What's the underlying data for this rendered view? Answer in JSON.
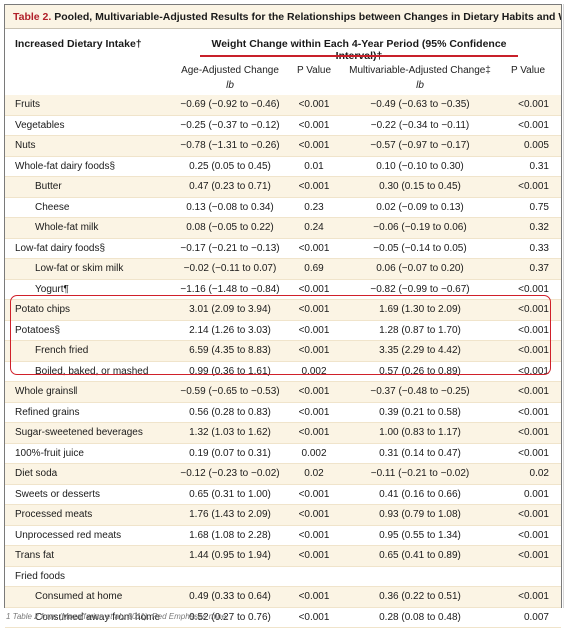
{
  "title": {
    "label": "Table 2.",
    "text": " Pooled, Multivariable-Adjusted Results for the Relationships between Changes in Dietary Habits and Weight Change.*"
  },
  "header": {
    "left": "Increased Dietary Intake†",
    "span": "Weight Change within Each 4-Year Period (95% Confidence Interval)†",
    "col1": "Age-Adjusted Change",
    "col1_unit": "lb",
    "col2": "P Value",
    "col3": "Multivariable-Adjusted Change‡",
    "col3_unit": "lb",
    "col4": "P Value"
  },
  "rows": [
    {
      "name": "Fruits",
      "indent": false,
      "age": "−0.69 (−0.92 to −0.46)",
      "p1": "<0.001",
      "multi": "−0.49 (−0.63 to −0.35)",
      "p2": "<0.001"
    },
    {
      "name": "Vegetables",
      "indent": false,
      "age": "−0.25 (−0.37 to −0.12)",
      "p1": "<0.001",
      "multi": "−0.22 (−0.34 to −0.11)",
      "p2": "<0.001"
    },
    {
      "name": "Nuts",
      "indent": false,
      "age": "−0.78 (−1.31 to −0.26)",
      "p1": "<0.001",
      "multi": "−0.57 (−0.97 to −0.17)",
      "p2": "0.005"
    },
    {
      "name": "Whole-fat dairy foods§",
      "indent": false,
      "age": "0.25 (0.05 to 0.45)",
      "p1": "0.01",
      "multi": "0.10 (−0.10 to 0.30)",
      "p2": "0.31"
    },
    {
      "name": "Butter",
      "indent": true,
      "age": "0.47 (0.23 to 0.71)",
      "p1": "<0.001",
      "multi": "0.30 (0.15 to 0.45)",
      "p2": "<0.001"
    },
    {
      "name": "Cheese",
      "indent": true,
      "age": "0.13 (−0.08 to 0.34)",
      "p1": "0.23",
      "multi": "0.02 (−0.09 to 0.13)",
      "p2": "0.75"
    },
    {
      "name": "Whole-fat milk",
      "indent": true,
      "age": "0.08 (−0.05 to 0.22)",
      "p1": "0.24",
      "multi": "−0.06 (−0.19 to 0.06)",
      "p2": "0.32"
    },
    {
      "name": "Low-fat dairy foods§",
      "indent": false,
      "age": "−0.17 (−0.21 to −0.13)",
      "p1": "<0.001",
      "multi": "−0.05 (−0.14 to 0.05)",
      "p2": "0.33"
    },
    {
      "name": "Low-fat or skim milk",
      "indent": true,
      "age": "−0.02 (−0.11 to 0.07)",
      "p1": "0.69",
      "multi": "0.06 (−0.07 to 0.20)",
      "p2": "0.37"
    },
    {
      "name": "Yogurt¶",
      "indent": true,
      "age": "−1.16 (−1.48 to −0.84)",
      "p1": "<0.001",
      "multi": "−0.82 (−0.99 to −0.67)",
      "p2": "<0.001"
    },
    {
      "name": "Potato chips",
      "indent": false,
      "age": "3.01 (2.09 to 3.94)",
      "p1": "<0.001",
      "multi": "1.69 (1.30 to 2.09)",
      "p2": "<0.001"
    },
    {
      "name": "Potatoes§",
      "indent": false,
      "age": "2.14 (1.26 to 3.03)",
      "p1": "<0.001",
      "multi": "1.28 (0.87 to 1.70)",
      "p2": "<0.001"
    },
    {
      "name": "French fried",
      "indent": true,
      "age": "6.59 (4.35 to 8.83)",
      "p1": "<0.001",
      "multi": "3.35 (2.29 to 4.42)",
      "p2": "<0.001"
    },
    {
      "name": "Boiled, baked, or mashed",
      "indent": true,
      "age": "0.99 (0.36 to 1.61)",
      "p1": "0.002",
      "multi": "0.57 (0.26 to 0.89)",
      "p2": "<0.001"
    },
    {
      "name": "Whole grains‖",
      "indent": false,
      "age": "−0.59 (−0.65 to −0.53)",
      "p1": "<0.001",
      "multi": "−0.37 (−0.48 to −0.25)",
      "p2": "<0.001"
    },
    {
      "name": "Refined grains",
      "indent": false,
      "age": "0.56 (0.28 to 0.83)",
      "p1": "<0.001",
      "multi": "0.39 (0.21 to 0.58)",
      "p2": "<0.001"
    },
    {
      "name": "Sugar-sweetened beverages",
      "indent": false,
      "age": "1.32 (1.03 to 1.62)",
      "p1": "<0.001",
      "multi": "1.00 (0.83 to 1.17)",
      "p2": "<0.001"
    },
    {
      "name": "100%-fruit juice",
      "indent": false,
      "age": "0.19 (0.07 to 0.31)",
      "p1": "0.002",
      "multi": "0.31 (0.14 to 0.47)",
      "p2": "<0.001"
    },
    {
      "name": "Diet soda",
      "indent": false,
      "age": "−0.12 (−0.23 to −0.02)",
      "p1": "0.02",
      "multi": "−0.11 (−0.21 to −0.02)",
      "p2": "0.02"
    },
    {
      "name": "Sweets or desserts",
      "indent": false,
      "age": "0.65 (0.31 to 1.00)",
      "p1": "<0.001",
      "multi": "0.41 (0.16 to 0.66)",
      "p2": "0.001"
    },
    {
      "name": "Processed meats",
      "indent": false,
      "age": "1.76 (1.43 to 2.09)",
      "p1": "<0.001",
      "multi": "0.93 (0.79 to 1.08)",
      "p2": "<0.001"
    },
    {
      "name": "Unprocessed red meats",
      "indent": false,
      "age": "1.68 (1.08 to 2.28)",
      "p1": "<0.001",
      "multi": "0.95 (0.55 to 1.34)",
      "p2": "<0.001"
    },
    {
      "name": "Trans fat",
      "indent": false,
      "age": "1.44 (0.95 to 1.94)",
      "p1": "<0.001",
      "multi": "0.65 (0.41 to 0.89)",
      "p2": "<0.001"
    },
    {
      "name": "Fried foods",
      "indent": false,
      "age": "",
      "p1": "",
      "multi": "",
      "p2": ""
    },
    {
      "name": "Consumed at home",
      "indent": true,
      "age": "0.49 (0.33 to 0.64)",
      "p1": "<0.001",
      "multi": "0.36 (0.22 to 0.51)",
      "p2": "<0.001"
    },
    {
      "name": "Consumed away from home",
      "indent": true,
      "age": "0.52 (0.27 to 0.76)",
      "p1": "<0.001",
      "multi": "0.28 (0.08 to 0.48)",
      "p2": "0.007"
    }
  ],
  "caption": "1 Table 2 from (Mozaffarian et al., 2011). Red Emphases mine.",
  "colors": {
    "accent": "#d0202a",
    "row_tint": "#fbf4e4"
  }
}
